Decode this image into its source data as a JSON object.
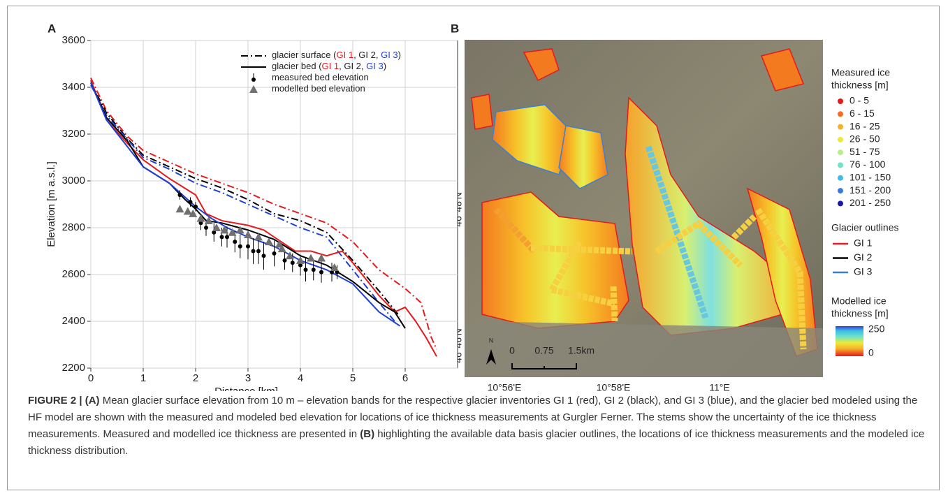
{
  "chart_data": {
    "type": "line",
    "panel_label": "A",
    "x_label": "Distance [km]",
    "y_label": "Elevation [m a.s.l.]",
    "xlim": [
      0,
      7
    ],
    "xticks": [
      0,
      1,
      2,
      3,
      4,
      5,
      6
    ],
    "ylim": [
      2200,
      3600
    ],
    "yticks": [
      2200,
      2400,
      2600,
      2800,
      3000,
      3200,
      3400,
      3600
    ],
    "grid": true,
    "series": [
      {
        "color": "#e41a1c",
        "style": "dashdot",
        "x": [
          0,
          0.3,
          0.7,
          1,
          1.5,
          2,
          2.5,
          3,
          3.5,
          4,
          4.5,
          5,
          5.5,
          6,
          6.3,
          6.5,
          6.6
        ],
        "values": [
          3440,
          3300,
          3190,
          3130,
          3080,
          3030,
          2990,
          2950,
          2900,
          2860,
          2820,
          2740,
          2620,
          2540,
          2480,
          2330,
          2280
        ]
      },
      {
        "color": "#000000",
        "style": "dashdot",
        "x": [
          0,
          0.3,
          0.7,
          1,
          1.5,
          2,
          2.5,
          3,
          3.5,
          4,
          4.5,
          5,
          5.5,
          5.9
        ],
        "values": [
          3420,
          3290,
          3180,
          3110,
          3060,
          3010,
          2970,
          2920,
          2860,
          2830,
          2780,
          2660,
          2530,
          2420
        ]
      },
      {
        "color": "#1f3fd1",
        "style": "dashdot",
        "x": [
          0,
          0.3,
          1,
          1.5,
          2,
          2.5,
          3,
          3.5,
          4,
          4.5,
          5,
          5.5,
          5.8
        ],
        "values": [
          3410,
          3280,
          3100,
          3050,
          2990,
          2950,
          2900,
          2850,
          2800,
          2760,
          2620,
          2480,
          2400
        ]
      },
      {
        "color": "#e41a1c",
        "style": "solid",
        "x": [
          0,
          0.3,
          0.7,
          1,
          1.5,
          2,
          2.2,
          2.5,
          3,
          3.3,
          3.5,
          3.9,
          4.2,
          4.5,
          4.8,
          5,
          5.5,
          5.8,
          6,
          6.2,
          6.4,
          6.6
        ],
        "values": [
          3430,
          3260,
          3160,
          3090,
          3010,
          2940,
          2860,
          2830,
          2810,
          2790,
          2760,
          2700,
          2700,
          2680,
          2700,
          2650,
          2510,
          2440,
          2460,
          2400,
          2330,
          2250
        ]
      },
      {
        "color": "#000000",
        "style": "solid",
        "x": [
          0,
          0.3,
          0.7,
          1,
          1.5,
          1.8,
          2,
          2.2,
          2.5,
          3,
          3.5,
          4,
          4.5,
          5,
          5.5,
          5.8,
          6
        ],
        "values": [
          3420,
          3270,
          3170,
          3060,
          2990,
          2920,
          2880,
          2830,
          2820,
          2790,
          2750,
          2680,
          2640,
          2570,
          2480,
          2440,
          2370
        ]
      },
      {
        "color": "#1f3fd1",
        "style": "solid",
        "x": [
          0,
          0.3,
          1,
          1.5,
          2,
          2.3,
          2.6,
          3,
          3.5,
          4,
          4.5,
          5,
          5.5,
          5.9
        ],
        "values": [
          3420,
          3260,
          3060,
          2990,
          2890,
          2840,
          2800,
          2760,
          2720,
          2660,
          2620,
          2560,
          2440,
          2380
        ]
      }
    ],
    "measured": {
      "color": "#000000",
      "x": [
        1.7,
        1.9,
        2.0,
        2.1,
        2.2,
        2.35,
        2.5,
        2.6,
        2.75,
        2.85,
        3.0,
        3.1,
        3.2,
        3.3,
        3.5,
        3.7,
        3.85,
        4.0,
        4.1,
        4.25,
        4.4,
        4.6,
        4.7
      ],
      "values": [
        2940,
        2910,
        2890,
        2820,
        2800,
        2780,
        2760,
        2760,
        2740,
        2720,
        2720,
        2700,
        2700,
        2680,
        2690,
        2660,
        2650,
        2640,
        2620,
        2620,
        2610,
        2610,
        2610
      ],
      "errors": [
        20,
        20,
        20,
        30,
        35,
        40,
        40,
        45,
        45,
        50,
        55,
        55,
        55,
        60,
        55,
        40,
        40,
        45,
        50,
        45,
        45,
        40,
        30
      ]
    },
    "modelled": {
      "color": "#707070",
      "x": [
        1.7,
        1.85,
        1.95,
        2.1,
        2.25,
        2.4,
        2.55,
        2.7,
        2.85,
        3.0,
        3.2,
        3.4,
        3.6,
        3.65,
        3.8,
        4.0,
        4.2,
        4.4,
        4.65
      ],
      "values": [
        2880,
        2870,
        2860,
        2840,
        2830,
        2800,
        2790,
        2780,
        2790,
        2770,
        2760,
        2740,
        2730,
        2710,
        2680,
        2660,
        2670,
        2670,
        2630
      ]
    },
    "legend": [
      {
        "style": "dashdot",
        "parts": [
          {
            "text": "glacier surface ("
          },
          {
            "text": "GI 1",
            "color": "#e41a1c"
          },
          {
            "text": ", GI 2, "
          },
          {
            "text": "GI 3",
            "color": "#1f3fd1"
          },
          {
            "text": ")"
          }
        ]
      },
      {
        "style": "solid",
        "parts": [
          {
            "text": "glacier bed ("
          },
          {
            "text": "GI 1",
            "color": "#e41a1c"
          },
          {
            "text": ", GI 2, "
          },
          {
            "text": "GI 3",
            "color": "#1f3fd1"
          },
          {
            "text": ")"
          }
        ]
      },
      {
        "style": "errorbar",
        "parts": [
          {
            "text": "measured bed elevation"
          }
        ]
      },
      {
        "style": "triangle",
        "parts": [
          {
            "text": "modelled bed elevation"
          }
        ]
      }
    ]
  },
  "map": {
    "panel_label": "B",
    "lat_labels": [
      "46°48'N",
      "46°46'N"
    ],
    "lon_labels": [
      "10°56'E",
      "10°58'E",
      "11°E"
    ],
    "north": "N",
    "scale_labels": [
      "0",
      "0.75",
      "1.5km"
    ],
    "measured_title": [
      "Measured ice",
      "thickness [m]"
    ],
    "measured_classes": [
      {
        "label": "0 - 5",
        "color": "#e31a1c"
      },
      {
        "label": "6 - 15",
        "color": "#f46d23"
      },
      {
        "label": "16 - 25",
        "color": "#f6b02a"
      },
      {
        "label": "26 - 50",
        "color": "#eaea3c"
      },
      {
        "label": "51 - 75",
        "color": "#b6ef8a"
      },
      {
        "label": "76 - 100",
        "color": "#6ee3c8"
      },
      {
        "label": "101 - 150",
        "color": "#3cbde6"
      },
      {
        "label": "151 - 200",
        "color": "#3b78e0"
      },
      {
        "label": "201 - 250",
        "color": "#1a1aa8"
      }
    ],
    "outline_title": "Glacier outlines",
    "outlines": [
      {
        "label": "GI 1",
        "color": "#e41a1c"
      },
      {
        "label": "GI 2",
        "color": "#000000"
      },
      {
        "label": "GI 3",
        "color": "#3a7fd5"
      }
    ],
    "modelled_title": [
      "Modelled ice",
      "thickness [m]"
    ],
    "colorbar_labels": [
      "250",
      "0"
    ]
  },
  "caption": {
    "label": "FIGURE 2 |",
    "a": "(A)",
    "text_a": " Mean glacier surface elevation from 10 m – elevation bands for the respective glacier inventories GI 1 (red), GI 2 (black), and GI 3 (blue), and the glacier bed modeled using the HF model are shown with the measured and modeled bed elevation for locations of ice thickness measurements at Gurgler Ferner. The stems show the uncertainty of the ice thickness measurements. Measured and modelled ice thickness are presented in ",
    "b": "(B)",
    "text_b": " highlighting the available data basis glacier outlines, the locations of ice thickness measurements and the modeled ice thickness distribution."
  }
}
